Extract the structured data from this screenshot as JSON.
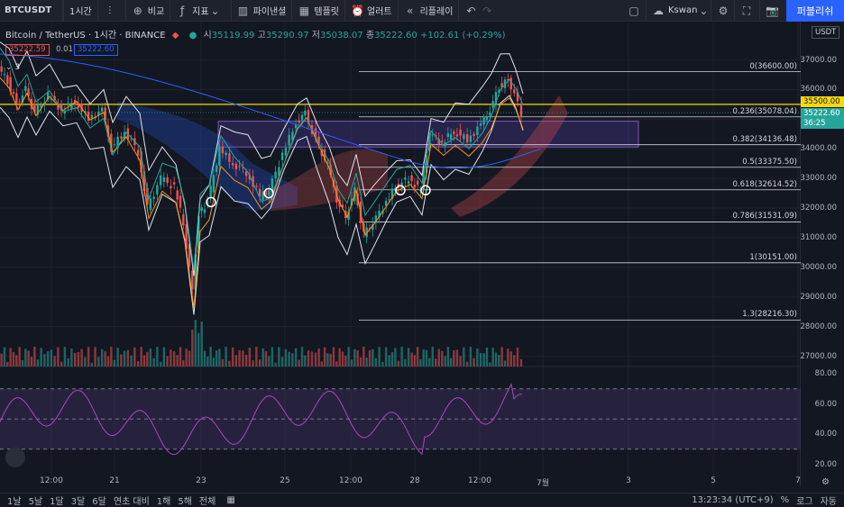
{
  "toolbar": {
    "symbol": "BTCUSDT",
    "interval": "1시간",
    "compare": "비교",
    "indicators": "지표",
    "financials": "파이낸셜",
    "templates": "템플릿",
    "alert": "얼러트",
    "replay": "리플레이",
    "user": "Kswan",
    "publish": "퍼블리쉬"
  },
  "legend": {
    "title": "Bitcoin / TetherUS · 1시간 · BINANCE",
    "open_label": "시",
    "open": "35119.99",
    "high_label": "고",
    "high": "35290.97",
    "low_label": "저",
    "low": "35038.07",
    "close_label": "종",
    "close": "35222.60",
    "change": "+102.61 (+0.29%)",
    "bid": "35222.59",
    "spread": "0.01",
    "ask": "35222.60",
    "indicator_count": "3"
  },
  "price_axis": {
    "currency": "USDT",
    "labels": [
      "37000.00",
      "36000.00",
      "35000.00",
      "34000.00",
      "33000.00",
      "32000.00",
      "31000.00",
      "30000.00",
      "29000.00",
      "28000.00",
      "27000.00"
    ],
    "tag_line": "35500.00",
    "tag_price": "35222.60",
    "tag_time": "36:25"
  },
  "rsi_axis": {
    "labels": [
      "80.00",
      "60.00",
      "40.00",
      "20.00"
    ]
  },
  "fib": [
    {
      "label": "0(36600.00)",
      "price": 36600
    },
    {
      "label": "0.236(35078.04)",
      "price": 35078.04
    },
    {
      "label": "0.382(34136.48)",
      "price": 34136.48
    },
    {
      "label": "0.5(33375.50)",
      "price": 33375.5
    },
    {
      "label": "0.618(32614.52)",
      "price": 32614.52
    },
    {
      "label": "0.786(31531.09)",
      "price": 31531.09
    },
    {
      "label": "1(30151.00)",
      "price": 30151
    },
    {
      "label": "1.3(28216.30)",
      "price": 28216.3
    }
  ],
  "time_axis": [
    "12:00",
    "21",
    "23",
    "25",
    "12:00",
    "28",
    "12:00",
    "7월",
    "3",
    "5",
    "7"
  ],
  "bottom": {
    "ranges": [
      "1날",
      "5날",
      "1달",
      "3달",
      "6달",
      "연초 대비",
      "1해",
      "5해",
      "전체"
    ],
    "clock": "13:23:34 (UTC+9)",
    "pct": "%",
    "log": "로그",
    "auto": "자동"
  },
  "colors": {
    "up": "#26a69a",
    "down": "#ef5350",
    "fib": "#d1d4dc",
    "yellow": "#f5d90a",
    "rsi": "#9c27b0",
    "accent": "#2962ff"
  }
}
